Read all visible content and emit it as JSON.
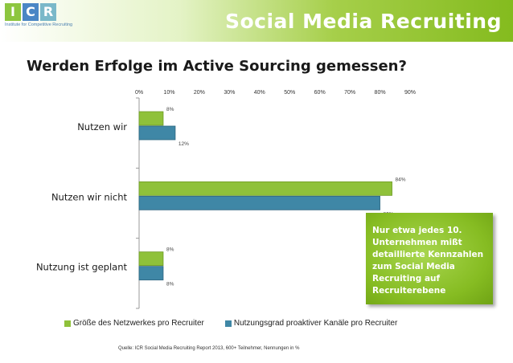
{
  "header": {
    "logo_letters": [
      "I",
      "C",
      "R"
    ],
    "logo_tagline": "Institute for Competitive Recruiting",
    "title": "Social Media Recruiting"
  },
  "question": "Werden Erfolge im Active Sourcing gemessen?",
  "callout": "Nur etwa jedes 10. Unternehmen mißt detaillierte Kennzahlen zum Social Media Recruiting auf Recruiterebene",
  "source": "Quelle: ICR Social Media Recruiting Report 2013, 600+ Teilnehmer, Nennungen in %",
  "colors": {
    "series_green": "#8fc13a",
    "series_blue": "#3f87a6",
    "logo_green": "#8dc63f",
    "logo_blue": "#4a86c5",
    "logo_teal": "#7ab8c9"
  },
  "chart_data": {
    "type": "bar",
    "orientation": "horizontal",
    "categories": [
      "Nutzen wir",
      "Nutzen wir nicht",
      "Nutzung ist geplant"
    ],
    "series": [
      {
        "name": "Größe des Netzwerkes pro Recruiter",
        "values": [
          8,
          84,
          8
        ],
        "labels": [
          "8%",
          "84%",
          "8%"
        ]
      },
      {
        "name": "Nutzungsgrad proaktiver Kanäle pro Recruiter",
        "values": [
          12,
          80,
          8
        ],
        "labels": [
          "12%",
          "80%",
          "8%"
        ]
      }
    ],
    "x_ticks": [
      "0%",
      "10%",
      "20%",
      "30%",
      "40%",
      "50%",
      "60%",
      "70%",
      "80%",
      "90%"
    ],
    "xlim": [
      0,
      90
    ],
    "axis_position": "top",
    "grid": false,
    "legend_position": "bottom"
  }
}
